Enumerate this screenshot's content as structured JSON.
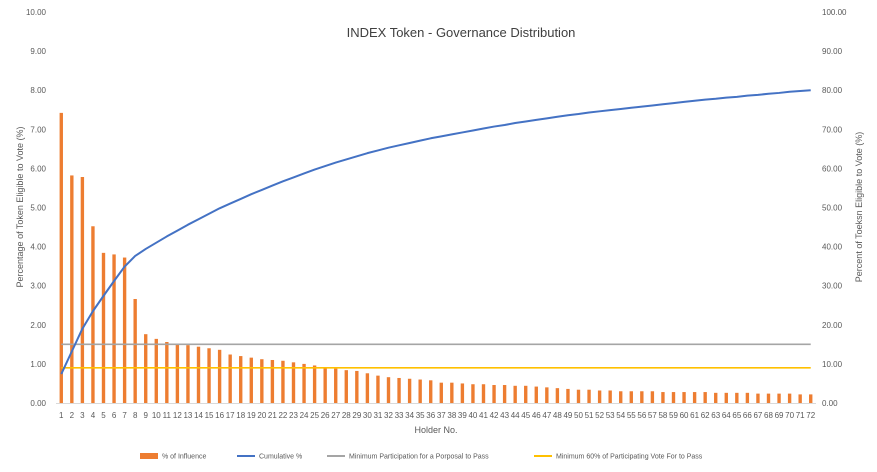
{
  "chart_data": {
    "type": "bar",
    "title": "INDEX Token - Governance Distribution",
    "xlabel": "Holder No.",
    "ylabel_left": "Percentage of Token Eligible to Vote (%)",
    "ylabel_right": "Percent of Toeksn Eligible to Vote (%)",
    "ylim_left": [
      0,
      10
    ],
    "ylim_right": [
      0,
      100
    ],
    "yticks_left": [
      "0.00",
      "1.00",
      "2.00",
      "3.00",
      "4.00",
      "5.00",
      "6.00",
      "7.00",
      "8.00",
      "9.00",
      "10.00"
    ],
    "yticks_right": [
      "0.00",
      "10.00",
      "20.00",
      "30.00",
      "40.00",
      "50.00",
      "60.00",
      "70.00",
      "80.00",
      "90.00",
      "100.00"
    ],
    "categories": [
      "1",
      "2",
      "3",
      "4",
      "5",
      "6",
      "7",
      "8",
      "9",
      "10",
      "11",
      "12",
      "13",
      "14",
      "15",
      "16",
      "17",
      "18",
      "19",
      "20",
      "21",
      "22",
      "23",
      "24",
      "25",
      "26",
      "27",
      "28",
      "29",
      "30",
      "31",
      "32",
      "33",
      "34",
      "35",
      "36",
      "37",
      "38",
      "39",
      "40",
      "41",
      "42",
      "43",
      "44",
      "45",
      "46",
      "47",
      "48",
      "49",
      "50",
      "51",
      "52",
      "53",
      "54",
      "55",
      "56",
      "57",
      "58",
      "59",
      "60",
      "61",
      "62",
      "63",
      "64",
      "65",
      "66",
      "67",
      "68",
      "69",
      "70",
      "71",
      "72"
    ],
    "grid": false,
    "legend_position": "bottom",
    "series": [
      {
        "name": "% of Influence",
        "type": "bar",
        "axis": "left",
        "color": "#ED7D31",
        "values": [
          7.42,
          5.82,
          5.78,
          4.52,
          3.84,
          3.8,
          3.72,
          2.66,
          1.76,
          1.64,
          1.56,
          1.52,
          1.48,
          1.44,
          1.4,
          1.36,
          1.24,
          1.2,
          1.16,
          1.12,
          1.1,
          1.08,
          1.04,
          1.0,
          0.96,
          0.92,
          0.88,
          0.84,
          0.82,
          0.76,
          0.7,
          0.66,
          0.64,
          0.62,
          0.6,
          0.58,
          0.52,
          0.52,
          0.5,
          0.48,
          0.48,
          0.46,
          0.46,
          0.44,
          0.44,
          0.42,
          0.4,
          0.38,
          0.36,
          0.34,
          0.34,
          0.32,
          0.32,
          0.3,
          0.3,
          0.3,
          0.3,
          0.28,
          0.28,
          0.28,
          0.28,
          0.28,
          0.26,
          0.26,
          0.26,
          0.26,
          0.24,
          0.24,
          0.24,
          0.24,
          0.22,
          0.22
        ]
      },
      {
        "name": "Cumulative %",
        "type": "line",
        "axis": "right",
        "color": "#4472C4",
        "values": [
          7.4,
          13.2,
          19.0,
          23.5,
          27.4,
          31.2,
          34.9,
          37.6,
          39.4,
          41.0,
          42.6,
          44.1,
          45.6,
          47.0,
          48.4,
          49.8,
          51.0,
          52.2,
          53.4,
          54.5,
          55.6,
          56.7,
          57.7,
          58.7,
          59.7,
          60.6,
          61.5,
          62.3,
          63.1,
          63.9,
          64.6,
          65.3,
          65.9,
          66.5,
          67.1,
          67.7,
          68.2,
          68.7,
          69.2,
          69.7,
          70.2,
          70.7,
          71.1,
          71.6,
          72.0,
          72.4,
          72.8,
          73.2,
          73.6,
          73.9,
          74.3,
          74.6,
          74.9,
          75.2,
          75.5,
          75.8,
          76.1,
          76.4,
          76.7,
          77.0,
          77.3,
          77.6,
          77.8,
          78.1,
          78.3,
          78.6,
          78.8,
          79.1,
          79.3,
          79.6,
          79.8,
          80.0
        ]
      },
      {
        "name": "Minimum Participation for a Porposal to Pass",
        "type": "line",
        "axis": "right",
        "color": "#A5A5A5",
        "values": [
          15.0,
          15.0,
          15.0,
          15.0,
          15.0,
          15.0,
          15.0,
          15.0,
          15.0,
          15.0,
          15.0,
          15.0,
          15.0,
          15.0,
          15.0,
          15.0,
          15.0,
          15.0,
          15.0,
          15.0,
          15.0,
          15.0,
          15.0,
          15.0,
          15.0,
          15.0,
          15.0,
          15.0,
          15.0,
          15.0,
          15.0,
          15.0,
          15.0,
          15.0,
          15.0,
          15.0,
          15.0,
          15.0,
          15.0,
          15.0,
          15.0,
          15.0,
          15.0,
          15.0,
          15.0,
          15.0,
          15.0,
          15.0,
          15.0,
          15.0,
          15.0,
          15.0,
          15.0,
          15.0,
          15.0,
          15.0,
          15.0,
          15.0,
          15.0,
          15.0,
          15.0,
          15.0,
          15.0,
          15.0,
          15.0,
          15.0,
          15.0,
          15.0,
          15.0,
          15.0,
          15.0,
          15.0
        ]
      },
      {
        "name": "Minimum 60% of Participating Vote For to Pass",
        "type": "line",
        "axis": "right",
        "color": "#FFC000",
        "values": [
          9.0,
          9.0,
          9.0,
          9.0,
          9.0,
          9.0,
          9.0,
          9.0,
          9.0,
          9.0,
          9.0,
          9.0,
          9.0,
          9.0,
          9.0,
          9.0,
          9.0,
          9.0,
          9.0,
          9.0,
          9.0,
          9.0,
          9.0,
          9.0,
          9.0,
          9.0,
          9.0,
          9.0,
          9.0,
          9.0,
          9.0,
          9.0,
          9.0,
          9.0,
          9.0,
          9.0,
          9.0,
          9.0,
          9.0,
          9.0,
          9.0,
          9.0,
          9.0,
          9.0,
          9.0,
          9.0,
          9.0,
          9.0,
          9.0,
          9.0,
          9.0,
          9.0,
          9.0,
          9.0,
          9.0,
          9.0,
          9.0,
          9.0,
          9.0,
          9.0,
          9.0,
          9.0,
          9.0,
          9.0,
          9.0,
          9.0,
          9.0,
          9.0,
          9.0,
          9.0,
          9.0,
          9.0
        ]
      }
    ]
  }
}
